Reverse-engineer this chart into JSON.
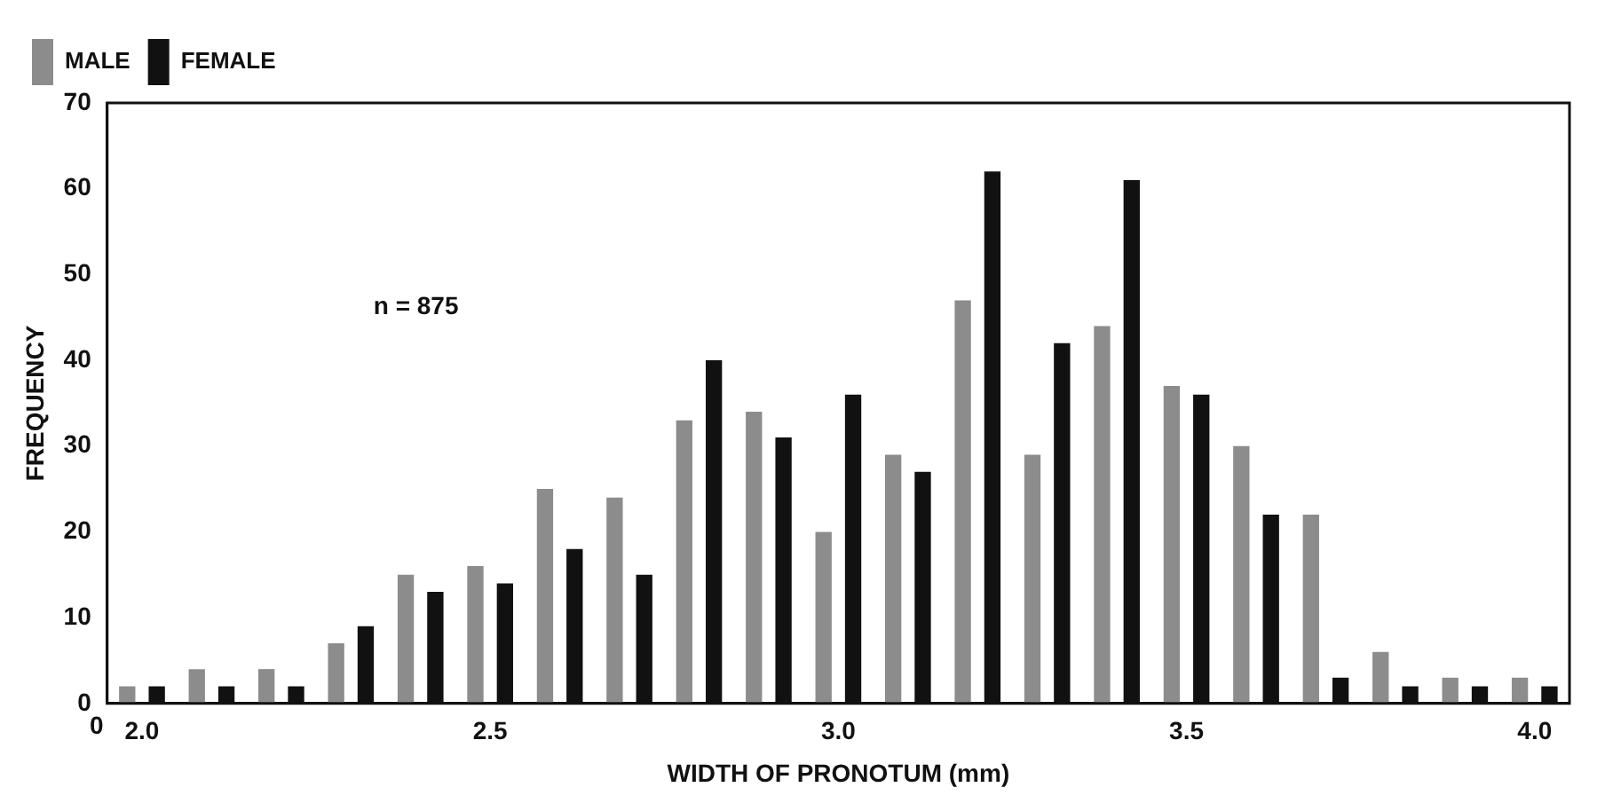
{
  "chart_data": {
    "type": "bar",
    "xlabel": "WIDTH OF PRONOTUM (mm)",
    "ylabel": "FREQUENCY",
    "categories": [
      "2.0",
      null,
      null,
      null,
      null,
      "2.5",
      null,
      null,
      null,
      null,
      "3.0",
      null,
      null,
      null,
      null,
      "3.5",
      null,
      null,
      null,
      null,
      "4.0"
    ],
    "series": [
      {
        "name": "MALE",
        "color": "#8c8c8c",
        "values": [
          2,
          4,
          4,
          7,
          15,
          16,
          25,
          24,
          33,
          34,
          20,
          29,
          47,
          29,
          44,
          37,
          30,
          22,
          6,
          3,
          3
        ]
      },
      {
        "name": "FEMALE",
        "color": "#111111",
        "values": [
          2,
          2,
          2,
          9,
          13,
          14,
          18,
          15,
          40,
          31,
          36,
          27,
          62,
          42,
          61,
          36,
          22,
          3,
          2,
          2,
          2
        ]
      }
    ],
    "ylim": [
      0,
      70
    ],
    "yticks": [
      0,
      10,
      20,
      30,
      40,
      50,
      60,
      70
    ],
    "grid": false,
    "legend": "top left",
    "annotations": [
      "n = 875",
      "0"
    ]
  }
}
